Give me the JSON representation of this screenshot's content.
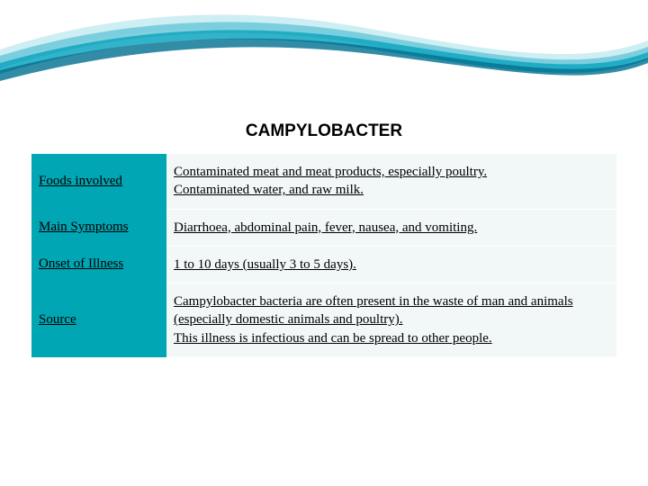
{
  "title": "CAMPYLOBACTER",
  "rows": [
    {
      "label": "Foods involved",
      "value": "Contaminated meat and meat products, especially poultry.\nContaminated water, and raw milk."
    },
    {
      "label": "Main Symptoms",
      "value": "Diarrhoea, abdominal pain, fever, nausea, and vomiting."
    },
    {
      "label": "Onset of Illness",
      "value": "1 to 10 days (usually 3 to 5 days)."
    },
    {
      "label": "Source",
      "value": "Campylobacter bacteria are often present in the waste of man and animals (especially domestic animals and poultry).\nThis illness is infectious and can be spread to other people."
    }
  ],
  "colors": {
    "header_bg": "#00a6b4",
    "value_bg": "#f2f7f7",
    "wave_light": "#b8e4ec",
    "wave_mid": "#4db8cc",
    "wave_dark": "#0090b0",
    "wave_deep": "#005f7a"
  }
}
